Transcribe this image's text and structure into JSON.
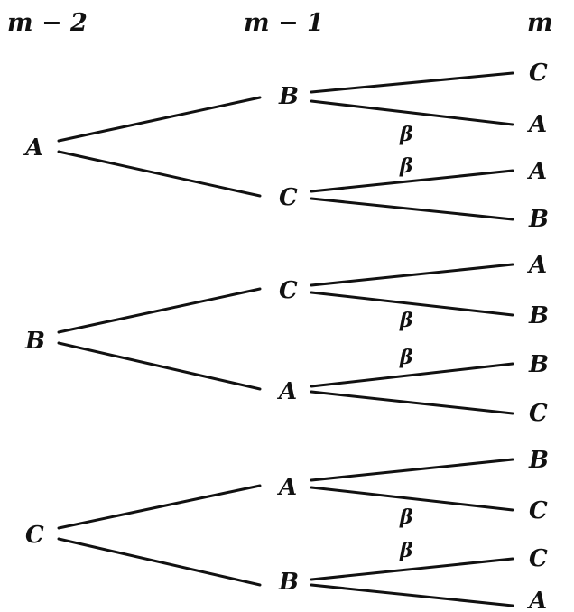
{
  "headers": [
    "m − 2",
    "m − 1",
    "m"
  ],
  "level0": [
    "A",
    "B",
    "C"
  ],
  "level1": [
    "B",
    "C",
    "C",
    "A",
    "A",
    "B"
  ],
  "level2": [
    "C",
    "A",
    "A",
    "B",
    "A",
    "B",
    "B",
    "C",
    "B",
    "C",
    "C",
    "A"
  ],
  "beta_symbol": "β",
  "beta_marked_leaves": [
    1,
    2,
    5,
    6,
    9,
    10
  ]
}
